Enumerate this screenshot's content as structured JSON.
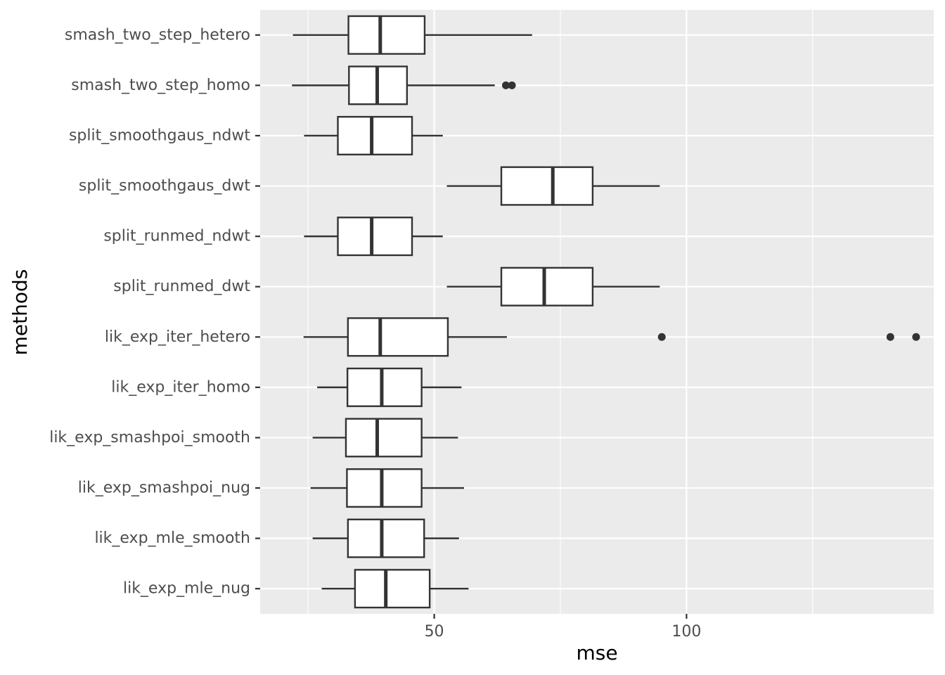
{
  "chart_data": {
    "type": "boxplot",
    "orientation": "horizontal",
    "xlabel": "mse",
    "ylabel": "methods",
    "xlim": [
      15.5,
      149
    ],
    "x_ticks": [
      50,
      100
    ],
    "x_minor_ticks": [
      25,
      75,
      125
    ],
    "grid": true,
    "categories": [
      "smash_two_step_hetero",
      "smash_two_step_homo",
      "split_smoothgaus_ndwt",
      "split_smoothgaus_dwt",
      "split_runmed_ndwt",
      "split_runmed_dwt",
      "lik_exp_iter_hetero",
      "lik_exp_iter_homo",
      "lik_exp_smashpoi_smooth",
      "lik_exp_smashpoi_nug",
      "lik_exp_mle_smooth",
      "lik_exp_mle_nug"
    ],
    "boxes": [
      {
        "min": 22.0,
        "q1": 33.0,
        "median": 39.3,
        "q3": 48.1,
        "max": 69.4,
        "outliers": []
      },
      {
        "min": 21.8,
        "q1": 33.1,
        "median": 38.7,
        "q3": 44.6,
        "max": 62.0,
        "outliers": [
          64.2,
          65.4
        ]
      },
      {
        "min": 24.2,
        "q1": 30.9,
        "median": 37.6,
        "q3": 45.6,
        "max": 51.7,
        "outliers": []
      },
      {
        "min": 52.5,
        "q1": 63.3,
        "median": 73.5,
        "q3": 81.4,
        "max": 94.7,
        "outliers": []
      },
      {
        "min": 24.2,
        "q1": 30.9,
        "median": 37.6,
        "q3": 45.6,
        "max": 51.7,
        "outliers": []
      },
      {
        "min": 52.5,
        "q1": 63.3,
        "median": 71.8,
        "q3": 81.4,
        "max": 94.7,
        "outliers": []
      },
      {
        "min": 24.1,
        "q1": 32.9,
        "median": 39.3,
        "q3": 52.7,
        "max": 64.4,
        "outliers": [
          95.1,
          140.4,
          145.5
        ]
      },
      {
        "min": 26.8,
        "q1": 32.8,
        "median": 39.6,
        "q3": 47.5,
        "max": 55.4,
        "outliers": []
      },
      {
        "min": 25.9,
        "q1": 32.5,
        "median": 38.7,
        "q3": 47.5,
        "max": 54.7,
        "outliers": []
      },
      {
        "min": 25.5,
        "q1": 32.7,
        "median": 39.6,
        "q3": 47.5,
        "max": 55.9,
        "outliers": []
      },
      {
        "min": 25.9,
        "q1": 32.9,
        "median": 39.6,
        "q3": 48.0,
        "max": 54.9,
        "outliers": []
      },
      {
        "min": 27.7,
        "q1": 34.3,
        "median": 40.4,
        "q3": 49.1,
        "max": 56.8,
        "outliers": []
      }
    ]
  }
}
